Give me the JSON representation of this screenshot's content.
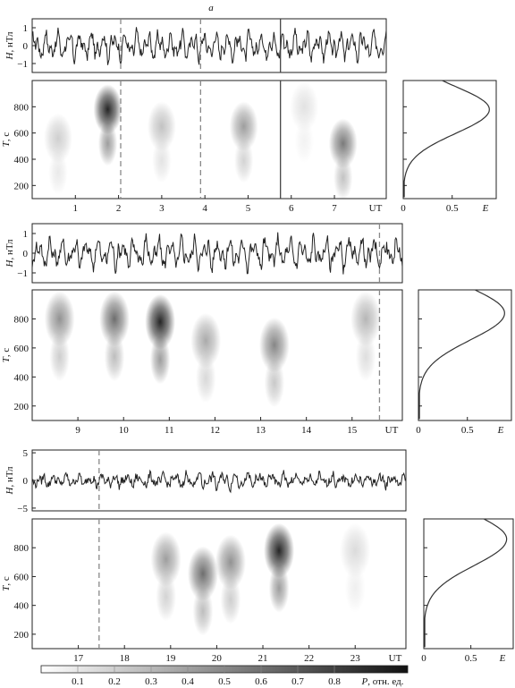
{
  "chart_data": [
    {
      "type": "line",
      "panel_label": "a",
      "ylabel": "H, нТл",
      "ylim": [
        -1.5,
        1.5
      ],
      "yticks": [
        "1",
        "0",
        "−1"
      ],
      "xlim": [
        0,
        8.2
      ],
      "amplitude": 0.8,
      "event_markers": [
        {
          "x": 2.05,
          "style": "dashed"
        },
        {
          "x": 3.9,
          "style": "dashed"
        },
        {
          "x": 5.75,
          "style": "solid"
        }
      ]
    },
    {
      "type": "heatmap",
      "ylabel": "T, с",
      "xlabel": "UT",
      "xlim": [
        0,
        8.2
      ],
      "ylim": [
        100,
        1000
      ],
      "xticks": [
        "1",
        "2",
        "3",
        "4",
        "5",
        "6",
        "7"
      ],
      "xtick_values": [
        1,
        2,
        3,
        4,
        5,
        6,
        7
      ],
      "yticks": [
        "200",
        "400",
        "600",
        "800"
      ],
      "ytick_values": [
        200,
        400,
        600,
        800
      ],
      "event_markers": [
        {
          "x": 2.05,
          "style": "dashed"
        },
        {
          "x": 3.9,
          "style": "dashed"
        },
        {
          "x": 5.75,
          "style": "solid"
        }
      ],
      "blobs": [
        {
          "x": 1.75,
          "T": 780,
          "power": 0.9
        },
        {
          "x": 0.6,
          "T": 560,
          "power": 0.2
        },
        {
          "x": 3.0,
          "T": 650,
          "power": 0.25
        },
        {
          "x": 4.9,
          "T": 650,
          "power": 0.4
        },
        {
          "x": 7.2,
          "T": 520,
          "power": 0.55
        },
        {
          "x": 6.3,
          "T": 800,
          "power": 0.12
        }
      ]
    },
    {
      "type": "line",
      "xlabel": "E",
      "ylabel": "T, с",
      "xlim": [
        0,
        0.95
      ],
      "ylim": [
        100,
        1000
      ],
      "xticks": [
        "0",
        "0.5"
      ],
      "xtick_values": [
        0,
        0.5
      ],
      "yticks": [
        "200",
        "400",
        "600",
        "800"
      ],
      "ytick_values": [
        200,
        400,
        600,
        800
      ],
      "peak_T": 780
    },
    {
      "type": "line",
      "ylabel": "H, нТл",
      "ylim": [
        -1.5,
        1.5
      ],
      "yticks": [
        "1",
        "0",
        "−1"
      ],
      "xlim": [
        8.0,
        16.1
      ],
      "amplitude": 0.8,
      "event_markers": [
        {
          "x": 15.6,
          "style": "dashed"
        }
      ]
    },
    {
      "type": "heatmap",
      "ylabel": "T, с",
      "xlabel": "UT",
      "xlim": [
        8.0,
        16.1
      ],
      "ylim": [
        100,
        1000
      ],
      "xticks": [
        "9",
        "10",
        "11",
        "12",
        "13",
        "14",
        "15"
      ],
      "xtick_values": [
        9,
        10,
        11,
        12,
        13,
        14,
        15
      ],
      "yticks": [
        "200",
        "400",
        "600",
        "800"
      ],
      "ytick_values": [
        200,
        400,
        600,
        800
      ],
      "event_markers": [
        {
          "x": 15.6,
          "style": "dashed"
        }
      ],
      "blobs": [
        {
          "x": 8.6,
          "T": 800,
          "power": 0.45
        },
        {
          "x": 9.8,
          "T": 800,
          "power": 0.6
        },
        {
          "x": 10.8,
          "T": 780,
          "power": 0.9
        },
        {
          "x": 11.8,
          "T": 650,
          "power": 0.35
        },
        {
          "x": 13.3,
          "T": 620,
          "power": 0.5
        },
        {
          "x": 15.3,
          "T": 800,
          "power": 0.3
        }
      ]
    },
    {
      "type": "line",
      "xlabel": "E",
      "xlim": [
        0,
        0.95
      ],
      "ylim": [
        100,
        1000
      ],
      "xticks": [
        "0",
        "0.5"
      ],
      "xtick_values": [
        0,
        0.5
      ],
      "peak_T": 840
    },
    {
      "type": "line",
      "ylabel": "H, нТл",
      "ylim": [
        -5.5,
        5.5
      ],
      "yticks": [
        "5",
        "0",
        "−5"
      ],
      "xlim": [
        16.0,
        24.1
      ],
      "amplitude": 2.0,
      "event_markers": [
        {
          "x": 17.45,
          "style": "dashed"
        }
      ]
    },
    {
      "type": "heatmap",
      "ylabel": "T, с",
      "xlabel": "UT",
      "xlim": [
        16.0,
        24.1
      ],
      "ylim": [
        100,
        1000
      ],
      "xticks": [
        "17",
        "18",
        "19",
        "20",
        "21",
        "22",
        "23"
      ],
      "xtick_values": [
        17,
        18,
        19,
        20,
        21,
        22,
        23
      ],
      "yticks": [
        "200",
        "400",
        "600",
        "800"
      ],
      "ytick_values": [
        200,
        400,
        600,
        800
      ],
      "event_markers": [
        {
          "x": 17.45,
          "style": "dashed"
        }
      ],
      "blobs": [
        {
          "x": 18.9,
          "T": 720,
          "power": 0.4
        },
        {
          "x": 19.7,
          "T": 620,
          "power": 0.6
        },
        {
          "x": 20.3,
          "T": 700,
          "power": 0.45
        },
        {
          "x": 21.35,
          "T": 780,
          "power": 0.9
        },
        {
          "x": 23.0,
          "T": 780,
          "power": 0.15
        }
      ]
    },
    {
      "type": "line",
      "xlabel": "E",
      "xlim": [
        0,
        0.95
      ],
      "ylim": [
        100,
        1000
      ],
      "xticks": [
        "0",
        "0.5"
      ],
      "xtick_values": [
        0,
        0.5
      ],
      "peak_T": 860
    }
  ],
  "colorbar": {
    "label": "P, отн. ед.",
    "range": [
      0,
      1
    ],
    "ticks": [
      "0.1",
      "0.2",
      "0.3",
      "0.4",
      "0.5",
      "0.6",
      "0.7",
      "0.8"
    ],
    "tick_values": [
      0.1,
      0.2,
      0.3,
      0.4,
      0.5,
      0.6,
      0.7,
      0.8
    ],
    "color_low": "#ffffff",
    "color_high": "#111111"
  }
}
